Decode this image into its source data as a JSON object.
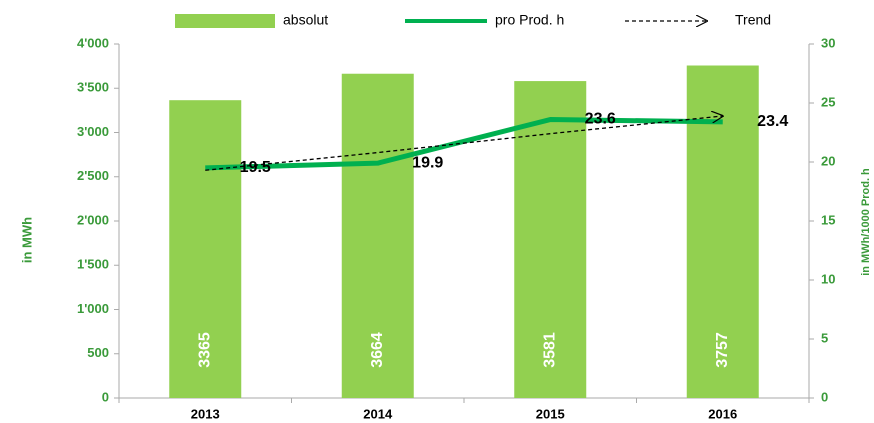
{
  "chart_data": {
    "type": "bar",
    "categories": [
      "2013",
      "2014",
      "2015",
      "2016"
    ],
    "series": [
      {
        "name": "absolut",
        "type": "bar",
        "color": "#92d050",
        "values": [
          3365,
          3664,
          3581,
          3757
        ],
        "axis": "y"
      },
      {
        "name": "pro Prod. h",
        "type": "line",
        "color": "#00b050",
        "values": [
          19.5,
          19.9,
          23.6,
          23.4
        ],
        "axis": "y2"
      },
      {
        "name": "Trend",
        "type": "line",
        "color": "#000000",
        "line_style": "dashed",
        "values": [
          19.3,
          20.8,
          22.4,
          23.9
        ],
        "axis": "y2"
      }
    ],
    "y_label": "in MWh",
    "y2_label": "in MWh/1000 Prod. h",
    "ylim": [
      0,
      4000
    ],
    "yticks": [
      0,
      500,
      {
        "value": 1000,
        "label": "1'000"
      },
      {
        "value": 1500,
        "label": "1'500"
      },
      {
        "value": 2000,
        "label": "2'000"
      },
      {
        "value": 2500,
        "label": "2'500"
      },
      {
        "value": 3000,
        "label": "3'000"
      },
      {
        "value": 3500,
        "label": "3'500"
      },
      {
        "value": 4000,
        "label": "4'000"
      }
    ],
    "y2lim": [
      0,
      30
    ],
    "y2ticks": [
      0,
      5,
      10,
      15,
      20,
      25,
      30
    ],
    "grid": false,
    "legend": "top"
  }
}
